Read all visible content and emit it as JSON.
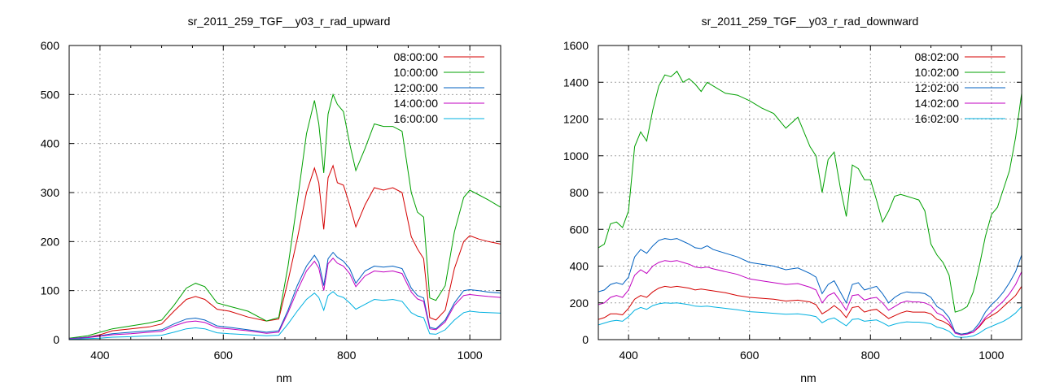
{
  "chart_data": [
    {
      "type": "line",
      "title": "sr_2011_259_TGF__y03_r_rad_upward",
      "xlabel": "nm",
      "ylabel": "",
      "xlim": [
        350,
        1050
      ],
      "ylim": [
        0,
        600
      ],
      "xticks": [
        400,
        600,
        800,
        1000
      ],
      "yticks": [
        0,
        100,
        200,
        300,
        400,
        500,
        600
      ],
      "grid": true,
      "legend_position": "top-right",
      "x": [
        350,
        380,
        400,
        420,
        450,
        480,
        500,
        520,
        540,
        555,
        570,
        590,
        610,
        640,
        670,
        690,
        705,
        720,
        735,
        748,
        755,
        763,
        770,
        778,
        785,
        795,
        805,
        815,
        830,
        845,
        860,
        875,
        890,
        905,
        915,
        925,
        935,
        945,
        960,
        975,
        990,
        1000,
        1015,
        1030,
        1050
      ],
      "series": [
        {
          "name": "08:00:00",
          "color": "#d40000",
          "values": [
            2,
            5,
            10,
            18,
            22,
            26,
            32,
            58,
            82,
            88,
            82,
            62,
            58,
            46,
            38,
            42,
            120,
            205,
            300,
            350,
            320,
            225,
            330,
            355,
            320,
            315,
            275,
            230,
            275,
            310,
            305,
            310,
            300,
            210,
            185,
            165,
            45,
            40,
            60,
            145,
            200,
            212,
            205,
            200,
            195
          ]
        },
        {
          "name": "10:00:00",
          "color": "#00a000",
          "values": [
            3,
            8,
            15,
            22,
            28,
            34,
            40,
            70,
            105,
            115,
            108,
            75,
            68,
            58,
            38,
            45,
            150,
            280,
            420,
            488,
            440,
            340,
            460,
            500,
            480,
            465,
            400,
            345,
            390,
            440,
            435,
            435,
            425,
            300,
            260,
            250,
            85,
            80,
            110,
            220,
            290,
            305,
            295,
            285,
            270
          ]
        },
        {
          "name": "12:00:00",
          "color": "#0060c0",
          "values": [
            2,
            5,
            8,
            12,
            15,
            18,
            20,
            32,
            42,
            44,
            40,
            28,
            25,
            20,
            15,
            18,
            60,
            110,
            150,
            172,
            158,
            110,
            165,
            178,
            168,
            160,
            145,
            115,
            140,
            150,
            148,
            150,
            145,
            105,
            90,
            85,
            25,
            22,
            40,
            75,
            100,
            102,
            100,
            97,
            95
          ]
        },
        {
          "name": "14:00:00",
          "color": "#c000c0",
          "values": [
            2,
            4,
            7,
            10,
            12,
            15,
            17,
            28,
            36,
            38,
            35,
            24,
            22,
            18,
            13,
            15,
            55,
            100,
            140,
            160,
            146,
            100,
            155,
            166,
            156,
            150,
            135,
            108,
            130,
            140,
            138,
            140,
            135,
            97,
            83,
            78,
            22,
            20,
            36,
            70,
            90,
            92,
            90,
            88,
            86
          ]
        },
        {
          "name": "16:00:00",
          "color": "#00b0e0",
          "values": [
            1,
            2,
            3,
            5,
            6,
            8,
            9,
            15,
            22,
            24,
            22,
            14,
            12,
            10,
            8,
            9,
            32,
            58,
            82,
            95,
            86,
            60,
            90,
            98,
            90,
            86,
            75,
            62,
            72,
            82,
            80,
            82,
            78,
            55,
            48,
            45,
            12,
            11,
            20,
            40,
            55,
            58,
            56,
            55,
            54
          ]
        }
      ]
    },
    {
      "type": "line",
      "title": "sr_2011_259_TGF__y03_r_rad_downward",
      "xlabel": "nm",
      "ylabel": "",
      "xlim": [
        350,
        1050
      ],
      "ylim": [
        0,
        1600
      ],
      "xticks": [
        400,
        600,
        800,
        1000
      ],
      "yticks": [
        0,
        200,
        400,
        600,
        800,
        1000,
        1200,
        1400,
        1600
      ],
      "grid": true,
      "legend_position": "top-right",
      "x": [
        350,
        360,
        370,
        380,
        390,
        400,
        410,
        420,
        430,
        440,
        450,
        460,
        470,
        480,
        490,
        500,
        510,
        520,
        530,
        540,
        560,
        580,
        600,
        620,
        640,
        660,
        680,
        700,
        710,
        720,
        730,
        740,
        750,
        760,
        770,
        780,
        790,
        800,
        810,
        820,
        830,
        840,
        850,
        860,
        870,
        880,
        890,
        900,
        910,
        920,
        930,
        940,
        950,
        960,
        970,
        980,
        990,
        1000,
        1010,
        1020,
        1030,
        1040,
        1050
      ],
      "series": [
        {
          "name": "08:02:00",
          "color": "#d40000",
          "values": [
            110,
            120,
            140,
            140,
            135,
            170,
            220,
            240,
            230,
            260,
            280,
            290,
            285,
            290,
            285,
            280,
            270,
            275,
            270,
            265,
            255,
            240,
            230,
            225,
            220,
            210,
            215,
            205,
            190,
            140,
            160,
            185,
            160,
            120,
            175,
            180,
            150,
            160,
            165,
            140,
            115,
            130,
            145,
            155,
            150,
            150,
            150,
            140,
            110,
            100,
            80,
            40,
            30,
            35,
            40,
            70,
            110,
            130,
            150,
            180,
            210,
            240,
            290
          ]
        },
        {
          "name": "10:02:00",
          "color": "#00a000",
          "values": [
            500,
            520,
            630,
            640,
            610,
            700,
            1050,
            1130,
            1080,
            1250,
            1380,
            1440,
            1430,
            1460,
            1400,
            1420,
            1390,
            1350,
            1400,
            1380,
            1340,
            1330,
            1300,
            1260,
            1230,
            1150,
            1210,
            1050,
            1000,
            800,
            980,
            1020,
            830,
            670,
            950,
            930,
            870,
            870,
            760,
            640,
            700,
            780,
            790,
            780,
            770,
            760,
            700,
            520,
            460,
            420,
            350,
            150,
            160,
            180,
            260,
            400,
            560,
            680,
            720,
            820,
            920,
            1100,
            1340
          ]
        },
        {
          "name": "12:02:00",
          "color": "#0060c0",
          "values": [
            260,
            270,
            300,
            310,
            300,
            340,
            450,
            490,
            470,
            510,
            540,
            550,
            545,
            550,
            535,
            520,
            500,
            495,
            510,
            490,
            470,
            450,
            420,
            410,
            400,
            380,
            390,
            360,
            340,
            250,
            300,
            320,
            260,
            200,
            300,
            310,
            270,
            280,
            290,
            250,
            200,
            230,
            250,
            260,
            255,
            255,
            250,
            230,
            180,
            160,
            120,
            40,
            30,
            35,
            50,
            90,
            150,
            190,
            220,
            260,
            310,
            370,
            460
          ]
        },
        {
          "name": "14:02:00",
          "color": "#c000c0",
          "values": [
            190,
            200,
            230,
            240,
            230,
            270,
            350,
            380,
            360,
            400,
            420,
            430,
            425,
            430,
            420,
            410,
            395,
            390,
            395,
            385,
            370,
            355,
            330,
            320,
            310,
            300,
            305,
            285,
            270,
            200,
            240,
            255,
            210,
            160,
            240,
            245,
            215,
            225,
            230,
            200,
            160,
            180,
            200,
            210,
            205,
            205,
            200,
            185,
            145,
            130,
            95,
            35,
            25,
            30,
            40,
            75,
            120,
            150,
            180,
            210,
            250,
            300,
            370
          ]
        },
        {
          "name": "16:02:00",
          "color": "#00b0e0",
          "values": [
            80,
            90,
            100,
            105,
            100,
            125,
            160,
            175,
            165,
            185,
            195,
            200,
            198,
            200,
            195,
            190,
            182,
            180,
            182,
            178,
            170,
            162,
            152,
            148,
            143,
            138,
            140,
            132,
            125,
            92,
            110,
            118,
            97,
            75,
            110,
            113,
            100,
            104,
            107,
            92,
            74,
            84,
            92,
            97,
            95,
            95,
            92,
            86,
            68,
            60,
            45,
            16,
            12,
            14,
            20,
            36,
            58,
            72,
            86,
            100,
            120,
            145,
            180
          ]
        }
      ]
    }
  ]
}
